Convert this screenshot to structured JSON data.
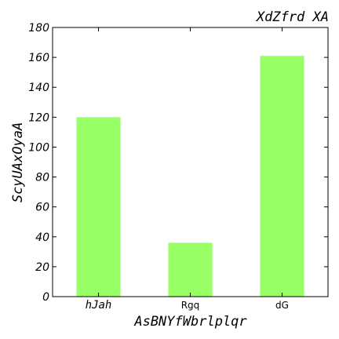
{
  "chart_data": {
    "type": "bar",
    "title": "XdZfrd XA",
    "xlabel": "AsBNYfWbrlplqr",
    "ylabel": "ScyUAxOyaA",
    "categories": [
      "hJah",
      "Rgq",
      "dG"
    ],
    "values": [
      120,
      36,
      161
    ],
    "ylim": [
      0,
      180
    ],
    "yticks": [
      0,
      20,
      40,
      60,
      80,
      100,
      120,
      140,
      160,
      180
    ],
    "grid": false,
    "bar_color": "#99ff66"
  }
}
